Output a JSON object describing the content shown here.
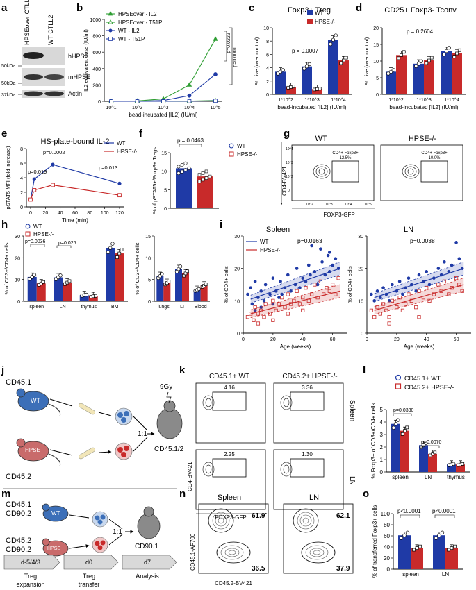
{
  "colors": {
    "wt": "#1f3aa6",
    "hpse": "#c82a2a",
    "green": "#2f9e33",
    "gray": "#777777"
  },
  "panel_labels": [
    "a",
    "b",
    "c",
    "d",
    "e",
    "f",
    "g",
    "h",
    "i",
    "j",
    "k",
    "l",
    "m",
    "n",
    "o"
  ],
  "panel_a": {
    "col_labels": [
      "HPSEover CTLL2",
      "WT CTLL2"
    ],
    "kda": [
      "50kDa",
      "50kDa",
      "37kDa"
    ],
    "bands": [
      "hHPSE",
      "mHPSE",
      "Actin"
    ]
  },
  "panel_b": {
    "pvals": [
      "p=0.0222",
      "p=0.0001"
    ]
  },
  "panel_e": {
    "pvals": [
      "p=0.019",
      "p=0.0002",
      "p=0.013"
    ]
  },
  "panel_f": {
    "pval": "p = 0.0463"
  },
  "panel_g": {
    "titles": [
      "WT",
      "HPSE-/-"
    ],
    "gates": [
      {
        "label": "CD4+ Foxp3+",
        "value": "12.5%"
      },
      {
        "label": "CD4+ Foxp3+",
        "value": "10.0%"
      }
    ],
    "ylabel": "CD4-BV421",
    "xlabel": "FOXP3-GFP",
    "ticks": [
      "10^4",
      "10^3",
      "10^2",
      "0",
      "10^2",
      "10^3",
      "10^4",
      "10^5"
    ]
  },
  "panel_h": {
    "pvals": [
      "p=0.0036",
      "p=0.026"
    ]
  },
  "panel_i": {
    "pvals": [
      "p=0.0163",
      "p=0.0038"
    ]
  },
  "panel_j": {
    "labels": [
      "CD45.1",
      "WT",
      "HPSE",
      "CD45.2",
      "9Gy",
      "1:1",
      "CD45.1/2"
    ]
  },
  "panel_k": {
    "col_titles": [
      "CD45.1+ WT",
      "CD45.2+ HPSE-/-"
    ],
    "row_titles": [
      "Spleen",
      "LN"
    ],
    "values": [
      "4.16",
      "3.36",
      "2.25",
      "1.30"
    ],
    "ylabel": "CD4-BV421",
    "xlabel": "FOXP3-GFP"
  },
  "panel_l": {
    "legend": [
      "CD45.1+ WT",
      "CD45.2+ HPSE-/-"
    ],
    "pvals": [
      "p=0.0330",
      "p=0.0070"
    ],
    "ylabel": "% Foxp3+ of CD3+/CD4+ cells",
    "categories": [
      "spleen",
      "LN",
      "thymus"
    ]
  },
  "panel_m": {
    "labels": [
      "CD45.1",
      "CD90.2",
      "WT",
      "CD45.2",
      "CD90.2",
      "HPSE",
      "1:1",
      "CD90.1"
    ],
    "timeline": [
      "d-5/4/3",
      "d0",
      "d7"
    ],
    "steps": [
      "Treg",
      "expansion",
      "Treg",
      "transfer",
      "Analysis"
    ]
  },
  "panel_n": {
    "titles": [
      "Spleen",
      "LN"
    ],
    "values": [
      "61.9",
      "36.5",
      "62.1",
      "37.9"
    ],
    "ylabel": "CD45.1-AF700",
    "xlabel": "CD45.2-BV421"
  },
  "panel_o": {
    "pvals": [
      "p<0.0001",
      "p<0.0001"
    ]
  },
  "chart_data": [
    {
      "id": "b",
      "type": "line",
      "title": "",
      "xlabel": "bead-incubated [IL2] (IU/ml)",
      "ylabel": "IL2 equivalent dose (IU/ml)",
      "x": [
        10,
        100,
        1000,
        10000,
        100000
      ],
      "xtick_labels": [
        "10^1",
        "10^2",
        "10^3",
        "10^4",
        "10^5"
      ],
      "ylim": [
        0,
        1000
      ],
      "yticks": [
        "0",
        "200",
        "400",
        "600",
        "800",
        "1000"
      ],
      "series": [
        {
          "name": "HPSEover - IL2",
          "values": [
            0,
            5,
            30,
            200,
            760
          ],
          "color": "#2f9e33",
          "marker": "triangle",
          "filled": true
        },
        {
          "name": "HPSEover - T51P",
          "values": [
            0,
            0,
            0,
            3,
            10
          ],
          "color": "#2f9e33",
          "marker": "triangle",
          "filled": false
        },
        {
          "name": "WT - IL2",
          "values": [
            0,
            2,
            10,
            70,
            330
          ],
          "color": "#1f3aa6",
          "marker": "circle",
          "filled": true
        },
        {
          "name": "WT - T51P",
          "values": [
            0,
            0,
            0,
            2,
            6
          ],
          "color": "#1f3aa6",
          "marker": "square",
          "filled": false
        }
      ]
    },
    {
      "id": "c",
      "type": "bar",
      "title": "Foxp3+ Treg",
      "xlabel": "bead-incubated [IL2] (IU/ml)",
      "ylabel": "% Live (over control)",
      "categories": [
        "1*10^2",
        "1*10^3",
        "1*10^4"
      ],
      "ylim": [
        0,
        10
      ],
      "yticks": [
        "0",
        "2",
        "4",
        "6",
        "8",
        "10"
      ],
      "annotation": "p = 0.0007",
      "series": [
        {
          "name": "WT",
          "values": [
            3.4,
            4.2,
            8.2
          ]
        },
        {
          "name": "HPSE-/-",
          "values": [
            1.1,
            0.8,
            5.1
          ]
        }
      ]
    },
    {
      "id": "d",
      "type": "bar",
      "title": "CD25+ Foxp3- Tconv",
      "xlabel": "bead-incubated [IL2] (IU/ml)",
      "ylabel": "% Live (over control)",
      "categories": [
        "1*10^2",
        "1*10^3",
        "1*10^4"
      ],
      "ylim": [
        0,
        20
      ],
      "yticks": [
        "0",
        "5",
        "10",
        "15",
        "20"
      ],
      "annotation": "p = 0.2604",
      "series": [
        {
          "name": "WT",
          "values": [
            6.8,
            9.2,
            13.0
          ]
        },
        {
          "name": "HPSE-/-",
          "values": [
            11.8,
            10.2,
            12.3
          ]
        }
      ]
    },
    {
      "id": "e",
      "type": "line",
      "title": "HS-plate-bound IL-2",
      "xlabel": "Time (min)",
      "ylabel": "pSTAT5 MFI (fold increase)",
      "x": [
        0,
        5,
        30,
        120
      ],
      "xticks": [
        "0",
        "20",
        "40",
        "60",
        "80",
        "100",
        "120"
      ],
      "ylim": [
        0,
        8
      ],
      "yticks": [
        "0",
        "2",
        "4",
        "6",
        "8"
      ],
      "series": [
        {
          "name": "WT",
          "values": [
            1.0,
            3.8,
            5.8,
            3.2
          ]
        },
        {
          "name": "HPSE-/-",
          "values": [
            1.0,
            2.3,
            3.0,
            1.6
          ]
        }
      ]
    },
    {
      "id": "f",
      "type": "bar",
      "title": "",
      "ylabel": "% of pSTAT5+/Foxp3+ Tregs",
      "categories": [
        "WT",
        "HPSE-/-"
      ],
      "ylim": [
        0,
        15
      ],
      "yticks": [
        "0",
        "5",
        "10",
        "15"
      ],
      "series": [
        {
          "name": "% pSTAT5+",
          "values": [
            10.8,
            8.6
          ]
        }
      ]
    },
    {
      "id": "h1",
      "type": "bar",
      "title": "",
      "ylabel": "% of CD3+/CD4+ cells",
      "categories": [
        "spleen",
        "LN",
        "thymus",
        "BM"
      ],
      "ylim": [
        0,
        30
      ],
      "yticks": [
        "0",
        "10",
        "20",
        "30"
      ],
      "series": [
        {
          "name": "WT",
          "values": [
            11.2,
            11.0,
            2.8,
            24.5
          ]
        },
        {
          "name": "HPSE-/-",
          "values": [
            8.2,
            8.6,
            2.3,
            22.0
          ]
        }
      ]
    },
    {
      "id": "h2",
      "type": "bar",
      "title": "",
      "ylabel": "% of CD3+/CD4+ cells",
      "categories": [
        "lungs",
        "LI",
        "Blood"
      ],
      "ylim": [
        0,
        15
      ],
      "yticks": [
        "0",
        "5",
        "10",
        "15"
      ],
      "series": [
        {
          "name": "WT",
          "values": [
            5.8,
            7.4,
            2.6
          ]
        },
        {
          "name": "HPSE-/-",
          "values": [
            4.2,
            6.4,
            3.6
          ]
        }
      ]
    },
    {
      "id": "i1",
      "type": "scatter",
      "title": "Spleen",
      "xlabel": "Age (weeks)",
      "ylabel": "% of CD4+ cells",
      "xlim": [
        0,
        70
      ],
      "ylim": [
        0,
        30
      ],
      "xticks": [
        "0",
        "20",
        "40",
        "60"
      ],
      "yticks": [
        "0",
        "10",
        "20",
        "30"
      ],
      "series": [
        {
          "name": "WT",
          "trend": [
            [
              5,
              10.5
            ],
            [
              65,
              20
            ]
          ],
          "points": [
            [
              3,
              12
            ],
            [
              5,
              14
            ],
            [
              6,
              9
            ],
            [
              8,
              16
            ],
            [
              10,
              11
            ],
            [
              12,
              13
            ],
            [
              14,
              10
            ],
            [
              15,
              15
            ],
            [
              18,
              12
            ],
            [
              20,
              17
            ],
            [
              22,
              13
            ],
            [
              24,
              11
            ],
            [
              25,
              16
            ],
            [
              28,
              14
            ],
            [
              30,
              18
            ],
            [
              32,
              13
            ],
            [
              35,
              15
            ],
            [
              36,
              20
            ],
            [
              38,
              14
            ],
            [
              40,
              17
            ],
            [
              42,
              16
            ],
            [
              44,
              21
            ],
            [
              45,
              18
            ],
            [
              48,
              19
            ],
            [
              50,
              15
            ],
            [
              52,
              26
            ],
            [
              53,
              22
            ],
            [
              55,
              18
            ],
            [
              57,
              24
            ],
            [
              58,
              19
            ],
            [
              60,
              21
            ],
            [
              62,
              23
            ],
            [
              64,
              20
            ],
            [
              8,
              7
            ],
            [
              12,
              8
            ],
            [
              20,
              9
            ],
            [
              26,
              12
            ],
            [
              46,
              27
            ],
            [
              58,
              25
            ]
          ]
        },
        {
          "name": "HPSE-/-",
          "trend": [
            [
              5,
              6
            ],
            [
              65,
              13
            ]
          ],
          "points": [
            [
              3,
              5
            ],
            [
              5,
              6
            ],
            [
              7,
              4
            ],
            [
              8,
              8
            ],
            [
              10,
              6
            ],
            [
              12,
              7
            ],
            [
              14,
              5
            ],
            [
              15,
              9
            ],
            [
              18,
              6
            ],
            [
              20,
              10
            ],
            [
              22,
              7
            ],
            [
              24,
              9
            ],
            [
              26,
              11
            ],
            [
              28,
              8
            ],
            [
              30,
              12
            ],
            [
              32,
              9
            ],
            [
              34,
              10
            ],
            [
              36,
              13
            ],
            [
              38,
              9
            ],
            [
              40,
              11
            ],
            [
              42,
              14
            ],
            [
              44,
              10
            ],
            [
              46,
              12
            ],
            [
              48,
              15
            ],
            [
              50,
              11
            ],
            [
              52,
              16
            ],
            [
              54,
              12
            ],
            [
              56,
              14
            ],
            [
              58,
              13
            ],
            [
              60,
              15
            ],
            [
              62,
              12
            ],
            [
              64,
              17
            ],
            [
              10,
              3
            ],
            [
              20,
              4
            ],
            [
              30,
              6
            ],
            [
              40,
              7
            ]
          ]
        }
      ],
      "annotation": "p=0.0163"
    },
    {
      "id": "i2",
      "type": "scatter",
      "title": "LN",
      "xlabel": "Age (weeks)",
      "ylabel": "% of CD4+ cells",
      "xlim": [
        0,
        70
      ],
      "ylim": [
        0,
        30
      ],
      "xticks": [
        "0",
        "20",
        "40",
        "60"
      ],
      "yticks": [
        "0",
        "10",
        "20",
        "30"
      ],
      "series": [
        {
          "name": "WT",
          "trend": [
            [
              5,
              11
            ],
            [
              65,
              20
            ]
          ],
          "points": [
            [
              3,
              12
            ],
            [
              5,
              10
            ],
            [
              7,
              13
            ],
            [
              9,
              11
            ],
            [
              11,
              14
            ],
            [
              13,
              12
            ],
            [
              15,
              10
            ],
            [
              17,
              15
            ],
            [
              20,
              13
            ],
            [
              22,
              16
            ],
            [
              24,
              12
            ],
            [
              26,
              14
            ],
            [
              28,
              17
            ],
            [
              30,
              15
            ],
            [
              33,
              13
            ],
            [
              35,
              18
            ],
            [
              38,
              16
            ],
            [
              40,
              19
            ],
            [
              42,
              15
            ],
            [
              45,
              17
            ],
            [
              48,
              20
            ],
            [
              50,
              18
            ],
            [
              52,
              22
            ],
            [
              55,
              19
            ],
            [
              57,
              21
            ],
            [
              60,
              28
            ],
            [
              62,
              23
            ],
            [
              64,
              20
            ]
          ]
        },
        {
          "name": "HPSE-/-",
          "trend": [
            [
              5,
              7
            ],
            [
              65,
              15
            ]
          ],
          "points": [
            [
              3,
              7
            ],
            [
              5,
              5
            ],
            [
              7,
              8
            ],
            [
              9,
              6
            ],
            [
              11,
              9
            ],
            [
              13,
              7
            ],
            [
              15,
              5
            ],
            [
              17,
              10
            ],
            [
              20,
              8
            ],
            [
              22,
              11
            ],
            [
              24,
              7
            ],
            [
              26,
              9
            ],
            [
              28,
              12
            ],
            [
              30,
              10
            ],
            [
              33,
              8
            ],
            [
              35,
              13
            ],
            [
              38,
              11
            ],
            [
              40,
              14
            ],
            [
              42,
              10
            ],
            [
              45,
              12
            ],
            [
              48,
              15
            ],
            [
              50,
              13
            ],
            [
              52,
              16
            ],
            [
              55,
              12
            ],
            [
              57,
              14
            ],
            [
              60,
              17
            ],
            [
              62,
              15
            ],
            [
              64,
              13
            ],
            [
              15,
              3
            ],
            [
              35,
              5
            ]
          ]
        }
      ],
      "annotation": "p=0.0038"
    },
    {
      "id": "l",
      "type": "bar",
      "title": "",
      "ylabel": "% Foxp3+ of CD3+/CD4+ cells",
      "categories": [
        "spleen",
        "LN",
        "thymus"
      ],
      "ylim": [
        0,
        5
      ],
      "yticks": [
        "0",
        "1",
        "2",
        "3",
        "4",
        "5"
      ],
      "series": [
        {
          "name": "CD45.1+ WT",
          "values": [
            3.85,
            2.15,
            0.6
          ]
        },
        {
          "name": "CD45.2+ HPSE-/-",
          "values": [
            3.3,
            1.45,
            0.6
          ]
        }
      ]
    },
    {
      "id": "o",
      "type": "bar",
      "title": "",
      "ylabel": "% of transferred Foxp3+ cells",
      "categories": [
        "spleen",
        "LN"
      ],
      "ylim": [
        0,
        100
      ],
      "yticks": [
        "0",
        "20",
        "40",
        "60",
        "80",
        "100"
      ],
      "series": [
        {
          "name": "WT",
          "values": [
            61,
            61
          ]
        },
        {
          "name": "HPSE-/-",
          "values": [
            38,
            38
          ]
        }
      ]
    }
  ]
}
